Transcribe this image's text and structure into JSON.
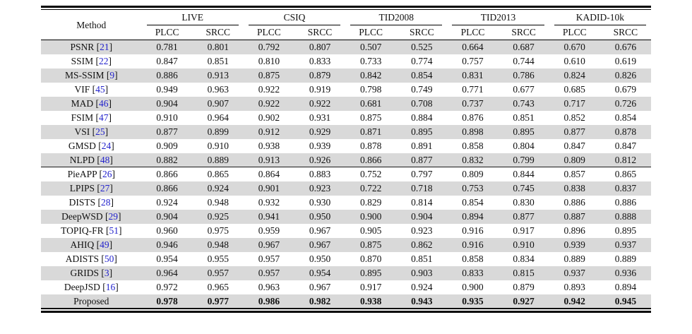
{
  "table": {
    "method_header": "Method",
    "groups": [
      {
        "label": "LIVE"
      },
      {
        "label": "CSIQ"
      },
      {
        "label": "TID2008"
      },
      {
        "label": "TID2013"
      },
      {
        "label": "KADID-10k"
      }
    ],
    "subheaders": {
      "plcc": "PLCC",
      "srcc": "SRCC"
    },
    "separator_before_row": 9,
    "colors": {
      "row_shade": "#d9d9d9",
      "citation_blue": "#2222cc",
      "rule_black": "#000000"
    },
    "rows": [
      {
        "method": "PSNR",
        "cite": "21",
        "bold": false,
        "values": [
          "0.781",
          "0.801",
          "0.792",
          "0.807",
          "0.507",
          "0.525",
          "0.664",
          "0.687",
          "0.670",
          "0.676"
        ]
      },
      {
        "method": "SSIM",
        "cite": "22",
        "bold": false,
        "values": [
          "0.847",
          "0.851",
          "0.810",
          "0.833",
          "0.733",
          "0.774",
          "0.757",
          "0.744",
          "0.610",
          "0.619"
        ]
      },
      {
        "method": "MS-SSIM",
        "cite": "9",
        "bold": false,
        "values": [
          "0.886",
          "0.913",
          "0.875",
          "0.879",
          "0.842",
          "0.854",
          "0.831",
          "0.786",
          "0.824",
          "0.826"
        ]
      },
      {
        "method": "VIF",
        "cite": "45",
        "bold": false,
        "values": [
          "0.949",
          "0.963",
          "0.922",
          "0.919",
          "0.798",
          "0.749",
          "0.771",
          "0.677",
          "0.685",
          "0.679"
        ]
      },
      {
        "method": "MAD",
        "cite": "46",
        "bold": false,
        "values": [
          "0.904",
          "0.907",
          "0.922",
          "0.922",
          "0.681",
          "0.708",
          "0.737",
          "0.743",
          "0.717",
          "0.726"
        ]
      },
      {
        "method": "FSIM",
        "cite": "47",
        "bold": false,
        "values": [
          "0.910",
          "0.964",
          "0.902",
          "0.931",
          "0.875",
          "0.884",
          "0.876",
          "0.851",
          "0.852",
          "0.854"
        ]
      },
      {
        "method": "VSI",
        "cite": "25",
        "bold": false,
        "values": [
          "0.877",
          "0.899",
          "0.912",
          "0.929",
          "0.871",
          "0.895",
          "0.898",
          "0.895",
          "0.877",
          "0.878"
        ]
      },
      {
        "method": "GMSD",
        "cite": "24",
        "bold": false,
        "values": [
          "0.909",
          "0.910",
          "0.938",
          "0.939",
          "0.878",
          "0.891",
          "0.858",
          "0.804",
          "0.847",
          "0.847"
        ]
      },
      {
        "method": "NLPD",
        "cite": "48",
        "bold": false,
        "values": [
          "0.882",
          "0.889",
          "0.913",
          "0.926",
          "0.866",
          "0.877",
          "0.832",
          "0.799",
          "0.809",
          "0.812"
        ]
      },
      {
        "method": "PieAPP",
        "cite": "26",
        "bold": false,
        "values": [
          "0.866",
          "0.865",
          "0.864",
          "0.883",
          "0.752",
          "0.797",
          "0.809",
          "0.844",
          "0.857",
          "0.865"
        ]
      },
      {
        "method": "LPIPS",
        "cite": "27",
        "bold": false,
        "values": [
          "0.866",
          "0.924",
          "0.901",
          "0.923",
          "0.722",
          "0.718",
          "0.753",
          "0.745",
          "0.838",
          "0.837"
        ]
      },
      {
        "method": "DISTS",
        "cite": "28",
        "bold": false,
        "values": [
          "0.924",
          "0.948",
          "0.932",
          "0.930",
          "0.829",
          "0.814",
          "0.854",
          "0.830",
          "0.886",
          "0.886"
        ]
      },
      {
        "method": "DeepWSD",
        "cite": "29",
        "bold": false,
        "values": [
          "0.904",
          "0.925",
          "0.941",
          "0.950",
          "0.900",
          "0.904",
          "0.894",
          "0.877",
          "0.887",
          "0.888"
        ]
      },
      {
        "method": "TOPIQ-FR",
        "cite": "51",
        "bold": false,
        "values": [
          "0.960",
          "0.975",
          "0.959",
          "0.967",
          "0.905",
          "0.923",
          "0.916",
          "0.917",
          "0.896",
          "0.895"
        ]
      },
      {
        "method": "AHIQ",
        "cite": "49",
        "bold": false,
        "values": [
          "0.946",
          "0.948",
          "0.967",
          "0.967",
          "0.875",
          "0.862",
          "0.916",
          "0.910",
          "0.939",
          "0.937"
        ]
      },
      {
        "method": "ADISTS",
        "cite": "50",
        "bold": false,
        "values": [
          "0.954",
          "0.955",
          "0.957",
          "0.950",
          "0.870",
          "0.851",
          "0.858",
          "0.834",
          "0.889",
          "0.889"
        ]
      },
      {
        "method": "GRIDS",
        "cite": "3",
        "bold": false,
        "values": [
          "0.964",
          "0.957",
          "0.957",
          "0.954",
          "0.895",
          "0.903",
          "0.833",
          "0.815",
          "0.937",
          "0.936"
        ]
      },
      {
        "method": "DeepJSD",
        "cite": "16",
        "bold": false,
        "values": [
          "0.972",
          "0.965",
          "0.963",
          "0.967",
          "0.917",
          "0.924",
          "0.900",
          "0.879",
          "0.893",
          "0.894"
        ]
      },
      {
        "method": "Proposed",
        "cite": "",
        "bold": true,
        "values": [
          "0.978",
          "0.977",
          "0.986",
          "0.982",
          "0.938",
          "0.943",
          "0.935",
          "0.927",
          "0.942",
          "0.945"
        ]
      }
    ]
  }
}
